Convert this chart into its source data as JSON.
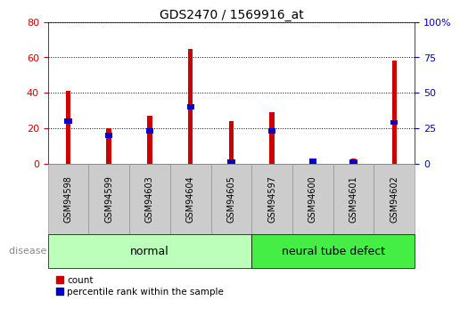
{
  "title": "GDS2470 / 1569916_at",
  "categories": [
    "GSM94598",
    "GSM94599",
    "GSM94603",
    "GSM94604",
    "GSM94605",
    "GSM94597",
    "GSM94600",
    "GSM94601",
    "GSM94602"
  ],
  "count_values": [
    41,
    20,
    27,
    65,
    24,
    29,
    1,
    3,
    58
  ],
  "percentile_values": [
    30,
    20,
    23,
    40,
    1,
    23,
    1.5,
    1,
    29
  ],
  "groups": [
    {
      "label": "normal",
      "span": [
        0,
        5
      ],
      "color": "#bbffbb"
    },
    {
      "label": "neural tube defect",
      "span": [
        5,
        9
      ],
      "color": "#44ee44"
    }
  ],
  "bar_color_count": "#cc0000",
  "bar_color_pct": "#0000cc",
  "ylim_left": [
    0,
    80
  ],
  "ylim_right": [
    0,
    100
  ],
  "yticks_left": [
    0,
    20,
    40,
    60,
    80
  ],
  "yticks_right": [
    0,
    25,
    50,
    75,
    100
  ],
  "ytick_labels_right": [
    "0",
    "25",
    "50",
    "75",
    "100%"
  ],
  "legend_count": "count",
  "legend_pct": "percentile rank within the sample",
  "disease_state_label": "disease state",
  "normal_label": "normal",
  "neural_label": "neural tube defect",
  "left_tick_color": "#cc0000",
  "right_tick_color": "#0000cc",
  "tick_bg_color": "#cccccc",
  "tick_bg_edge_color": "#888888"
}
